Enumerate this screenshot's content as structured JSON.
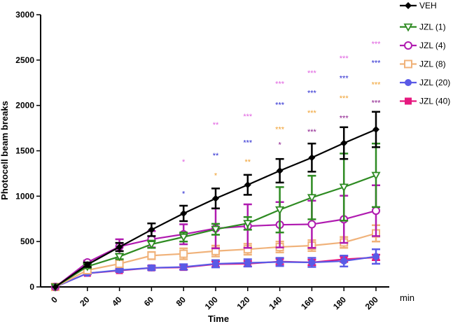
{
  "chart_data": {
    "type": "line",
    "title": "",
    "xlabel": "Time",
    "ylabel": "Photocell beam breaks",
    "x_unit": "min",
    "x": [
      0,
      20,
      40,
      60,
      80,
      100,
      120,
      140,
      160,
      180,
      200
    ],
    "xlim": [
      0,
      200
    ],
    "ylim": [
      0,
      3000
    ],
    "yticks": [
      0,
      500,
      1000,
      1500,
      2000,
      2500,
      3000
    ],
    "legend_position": "right",
    "grid": false,
    "series": [
      {
        "name": "VEH",
        "color": "#000000",
        "marker": "diamond",
        "values": [
          0,
          245,
          440,
          630,
          810,
          975,
          1125,
          1280,
          1425,
          1585,
          1735
        ],
        "errors": [
          0,
          25,
          45,
          70,
          85,
          110,
          110,
          130,
          155,
          175,
          195
        ]
      },
      {
        "name": "JZL (1)",
        "color": "#2e8b22",
        "marker": "triangle-down",
        "values": [
          0,
          225,
          335,
          470,
          550,
          635,
          700,
          850,
          985,
          1100,
          1230
        ],
        "errors": [
          0,
          20,
          30,
          40,
          50,
          60,
          70,
          250,
          240,
          370,
          350
        ]
      },
      {
        "name": "JZL (4)",
        "color": "#b01bb0",
        "marker": "circle-open",
        "values": [
          0,
          270,
          445,
          525,
          580,
          645,
          670,
          685,
          690,
          745,
          840
        ],
        "errors": [
          0,
          20,
          80,
          90,
          110,
          220,
          240,
          250,
          260,
          260,
          280
        ]
      },
      {
        "name": "JZL (8)",
        "color": "#f0b27a",
        "marker": "square-open",
        "values": [
          0,
          185,
          255,
          345,
          365,
          395,
          415,
          440,
          455,
          490,
          590
        ],
        "errors": [
          0,
          15,
          30,
          40,
          60,
          60,
          60,
          60,
          60,
          60,
          90
        ]
      },
      {
        "name": "JZL (20)",
        "color": "#5a5ae6",
        "marker": "circle",
        "values": [
          0,
          150,
          185,
          210,
          220,
          255,
          265,
          275,
          270,
          285,
          335
        ],
        "errors": [
          0,
          10,
          20,
          25,
          30,
          40,
          40,
          45,
          50,
          60,
          80
        ]
      },
      {
        "name": "JZL (40)",
        "color": "#e6197f",
        "marker": "square",
        "values": [
          0,
          150,
          180,
          210,
          215,
          250,
          255,
          280,
          270,
          305,
          325
        ],
        "errors": [
          0,
          10,
          15,
          20,
          25,
          30,
          30,
          30,
          30,
          30,
          30
        ]
      }
    ],
    "significance_markers": [
      {
        "x": 80,
        "y": 1000,
        "text": "*",
        "color": "#2a2ad0"
      },
      {
        "x": 80,
        "y": 1350,
        "text": "*",
        "color": "#e060e0"
      },
      {
        "x": 100,
        "y": 1200,
        "text": "*",
        "color": "#f0a030"
      },
      {
        "x": 100,
        "y": 1420,
        "text": "**",
        "color": "#2a2ad0"
      },
      {
        "x": 100,
        "y": 1760,
        "text": "**",
        "color": "#e060e0"
      },
      {
        "x": 120,
        "y": 1350,
        "text": "**",
        "color": "#f0a030"
      },
      {
        "x": 120,
        "y": 1560,
        "text": "***",
        "color": "#2a2ad0"
      },
      {
        "x": 120,
        "y": 1850,
        "text": "***",
        "color": "#e060e0"
      },
      {
        "x": 140,
        "y": 1540,
        "text": "*",
        "color": "#8b1a8b"
      },
      {
        "x": 140,
        "y": 1710,
        "text": "***",
        "color": "#f0a030"
      },
      {
        "x": 140,
        "y": 1980,
        "text": "***",
        "color": "#2a2ad0"
      },
      {
        "x": 140,
        "y": 2210,
        "text": "***",
        "color": "#e060e0"
      },
      {
        "x": 160,
        "y": 1680,
        "text": "***",
        "color": "#8b1a8b"
      },
      {
        "x": 160,
        "y": 1890,
        "text": "***",
        "color": "#f0a030"
      },
      {
        "x": 160,
        "y": 2110,
        "text": "***",
        "color": "#2a2ad0"
      },
      {
        "x": 160,
        "y": 2330,
        "text": "***",
        "color": "#e060e0"
      },
      {
        "x": 180,
        "y": 1830,
        "text": "***",
        "color": "#8b1a8b"
      },
      {
        "x": 180,
        "y": 2050,
        "text": "***",
        "color": "#f0a030"
      },
      {
        "x": 180,
        "y": 2270,
        "text": "***",
        "color": "#2a2ad0"
      },
      {
        "x": 180,
        "y": 2490,
        "text": "***",
        "color": "#e060e0"
      },
      {
        "x": 200,
        "y": 2000,
        "text": "***",
        "color": "#8b1a8b"
      },
      {
        "x": 200,
        "y": 2200,
        "text": "***",
        "color": "#f0a030"
      },
      {
        "x": 200,
        "y": 2440,
        "text": "***",
        "color": "#2a2ad0"
      },
      {
        "x": 200,
        "y": 2650,
        "text": "***",
        "color": "#e060e0"
      }
    ]
  }
}
